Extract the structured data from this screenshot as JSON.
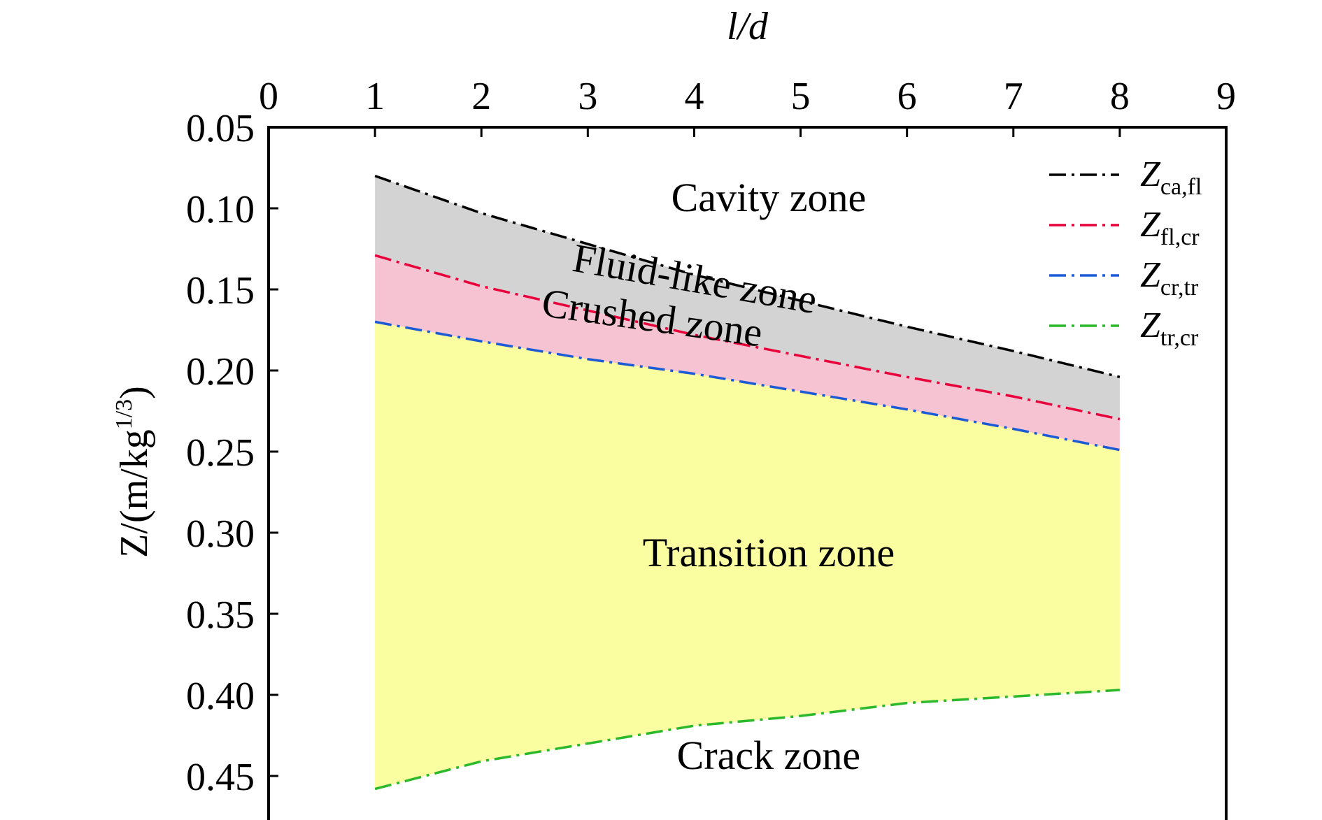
{
  "chart_data": {
    "type": "area",
    "title": "",
    "xlabel": "l/d",
    "ylabel": "Z/(m/kg",
    "ylabel_sup": "1/3",
    "ylabel_close": ")",
    "xlim": [
      0,
      9
    ],
    "ylim": [
      0.05,
      0.47
    ],
    "y_inverted": true,
    "x_ticks": [
      "0",
      "1",
      "2",
      "3",
      "4",
      "5",
      "6",
      "7",
      "8",
      "9"
    ],
    "y_ticks": [
      "0.05",
      "0.10",
      "0.15",
      "0.20",
      "0.25",
      "0.30",
      "0.35",
      "0.40",
      "0.45"
    ],
    "x": [
      1,
      2,
      3,
      4,
      5,
      6,
      7,
      8
    ],
    "series": [
      {
        "name": "Z",
        "sub": "ca,fl",
        "color": "#000000",
        "values": [
          0.08,
          0.103,
          0.122,
          0.141,
          0.157,
          0.173,
          0.188,
          0.204
        ]
      },
      {
        "name": "Z",
        "sub": "fl,cr",
        "color": "#e8003a",
        "values": [
          0.129,
          0.148,
          0.163,
          0.178,
          0.191,
          0.204,
          0.216,
          0.23
        ]
      },
      {
        "name": "Z",
        "sub": "cr,tr",
        "color": "#1d5bd6",
        "values": [
          0.17,
          0.182,
          0.193,
          0.202,
          0.213,
          0.224,
          0.236,
          0.249
        ]
      },
      {
        "name": "Z",
        "sub": "tr,cr",
        "color": "#2bb82b",
        "values": [
          0.458,
          0.441,
          0.43,
          0.419,
          0.413,
          0.405,
          0.401,
          0.397
        ]
      }
    ],
    "fills": [
      {
        "between": [
          0,
          1
        ],
        "color": "#d3d3d3"
      },
      {
        "between": [
          1,
          2
        ],
        "color": "#f5c3d1"
      },
      {
        "between": [
          2,
          3
        ],
        "color": "#fbfea0"
      }
    ],
    "zones": [
      {
        "label": "Cavity zone",
        "x": 4.7,
        "y": 0.096,
        "rotate": 0
      },
      {
        "label": "Fluid-like zone",
        "x": 4.0,
        "y": 0.146,
        "rotate": 10
      },
      {
        "label": "Crushed zone",
        "x": 3.6,
        "y": 0.17,
        "rotate": 8
      },
      {
        "label": "Transition zone",
        "x": 4.7,
        "y": 0.315,
        "rotate": 0
      },
      {
        "label": "Crack zone",
        "x": 4.7,
        "y": 0.44,
        "rotate": 0
      }
    ],
    "legend": "top-right",
    "grid": false
  }
}
